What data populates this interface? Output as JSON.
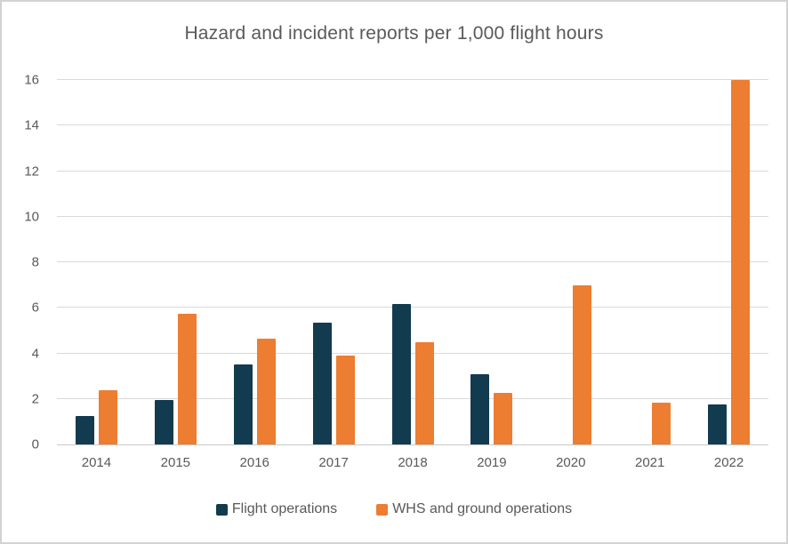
{
  "colors": {
    "flight_operations": "#123b4f",
    "whs_ground_operations": "#ed7d31",
    "gridline": "#d9d9d9",
    "axis_line": "#c9c9c9",
    "text": "#595959",
    "frame_border": "#d2d2d2",
    "background": "#ffffff"
  },
  "chart_data": {
    "type": "bar",
    "title": "Hazard and incident reports per 1,000 flight hours",
    "categories": [
      "2014",
      "2015",
      "2016",
      "2017",
      "2018",
      "2019",
      "2020",
      "2021",
      "2022"
    ],
    "series": [
      {
        "name": "Flight operations",
        "color": "#123b4f",
        "values": [
          1.25,
          1.95,
          3.5,
          5.35,
          6.15,
          3.1,
          0,
          0,
          1.75
        ]
      },
      {
        "name": "WHS and ground operations",
        "color": "#ed7d31",
        "values": [
          2.4,
          5.75,
          4.65,
          3.9,
          4.5,
          2.25,
          7.0,
          1.85,
          16.0
        ]
      }
    ],
    "xlabel": "",
    "ylabel": "",
    "ylim": [
      0,
      16
    ],
    "ytick_step": 2,
    "yticks": [
      0,
      2,
      4,
      6,
      8,
      10,
      12,
      14,
      16
    ],
    "grid": true,
    "legend_position": "bottom"
  }
}
